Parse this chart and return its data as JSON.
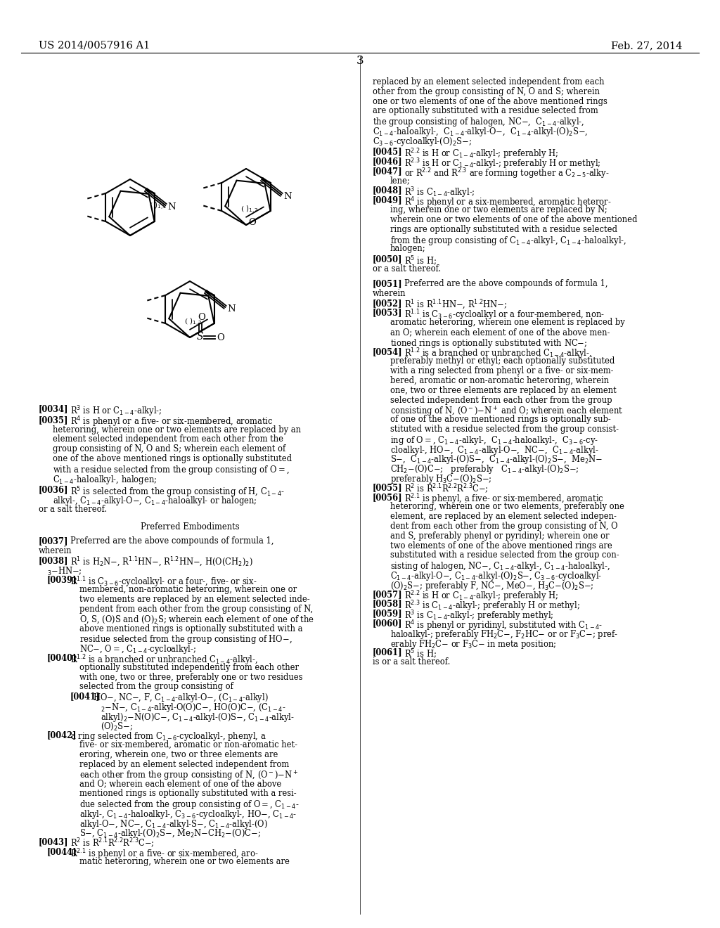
{
  "background_color": "#ffffff",
  "header_left": "US 2014/0057916 A1",
  "header_right": "Feb. 27, 2014",
  "page_number": "3"
}
